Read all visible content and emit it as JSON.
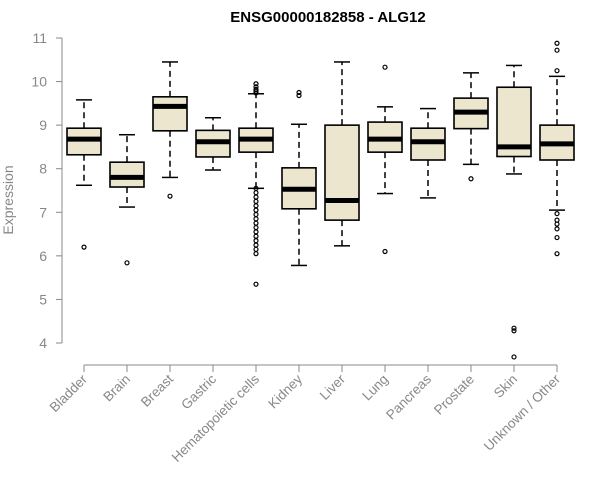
{
  "chart_data": {
    "type": "boxplot",
    "title": "ENSG00000182858 - ALG12",
    "xlabel": "",
    "ylabel": "Expression",
    "ylim": [
      3.55,
      11.05
    ],
    "yticks": [
      4,
      5,
      6,
      7,
      8,
      9,
      10,
      11
    ],
    "box_fill": "#ede6cf",
    "box_stroke": "#000000",
    "outlier_color": "#000000",
    "categories": [
      "Bladder",
      "Brain",
      "Breast",
      "Gastric",
      "Hematopoietic cells",
      "Kidney",
      "Liver",
      "Lung",
      "Pancreas",
      "Prostate",
      "Skin",
      "Unknown / Other"
    ],
    "boxes": [
      {
        "name": "Bladder",
        "whisker_low": 7.62,
        "q1": 8.32,
        "median": 8.68,
        "q3": 8.93,
        "whisker_high": 9.58,
        "outliers": [
          6.2
        ]
      },
      {
        "name": "Brain",
        "whisker_low": 7.12,
        "q1": 7.58,
        "median": 7.8,
        "q3": 8.15,
        "whisker_high": 8.78,
        "outliers": [
          5.84
        ]
      },
      {
        "name": "Breast",
        "whisker_low": 7.8,
        "q1": 8.87,
        "median": 9.43,
        "q3": 9.65,
        "whisker_high": 10.45,
        "outliers": [
          7.37
        ]
      },
      {
        "name": "Gastric",
        "whisker_low": 7.97,
        "q1": 8.27,
        "median": 8.62,
        "q3": 8.88,
        "whisker_high": 9.17,
        "outliers": []
      },
      {
        "name": "Hematopoietic cells",
        "whisker_low": 7.55,
        "q1": 8.38,
        "median": 8.68,
        "q3": 8.93,
        "whisker_high": 9.72,
        "outliers": [
          9.95,
          9.88,
          9.82,
          9.78,
          9.74,
          7.55,
          7.45,
          7.35,
          7.25,
          7.15,
          7.05,
          6.95,
          6.85,
          6.75,
          6.65,
          6.55,
          6.45,
          6.35,
          6.25,
          6.15,
          6.05,
          5.35
        ]
      },
      {
        "name": "Kidney",
        "whisker_low": 5.78,
        "q1": 7.08,
        "median": 7.53,
        "q3": 8.02,
        "whisker_high": 9.02,
        "outliers": [
          9.75,
          9.68
        ]
      },
      {
        "name": "Liver",
        "whisker_low": 6.23,
        "q1": 6.82,
        "median": 7.27,
        "q3": 9.0,
        "whisker_high": 10.45,
        "outliers": []
      },
      {
        "name": "Lung",
        "whisker_low": 7.43,
        "q1": 8.38,
        "median": 8.68,
        "q3": 9.07,
        "whisker_high": 9.42,
        "outliers": [
          10.33,
          6.1
        ]
      },
      {
        "name": "Pancreas",
        "whisker_low": 7.33,
        "q1": 8.2,
        "median": 8.62,
        "q3": 8.93,
        "whisker_high": 9.38,
        "outliers": []
      },
      {
        "name": "Prostate",
        "whisker_low": 8.1,
        "q1": 8.92,
        "median": 9.3,
        "q3": 9.62,
        "whisker_high": 10.2,
        "outliers": [
          7.77
        ]
      },
      {
        "name": "Skin",
        "whisker_low": 7.88,
        "q1": 8.28,
        "median": 8.5,
        "q3": 9.87,
        "whisker_high": 10.37,
        "outliers": [
          4.34,
          4.28,
          3.68
        ]
      },
      {
        "name": "Unknown / Other",
        "whisker_low": 7.05,
        "q1": 8.2,
        "median": 8.57,
        "q3": 9.0,
        "whisker_high": 10.12,
        "outliers": [
          10.88,
          10.72,
          10.25,
          6.97,
          6.82,
          6.73,
          6.62,
          6.42,
          6.05
        ]
      }
    ]
  }
}
